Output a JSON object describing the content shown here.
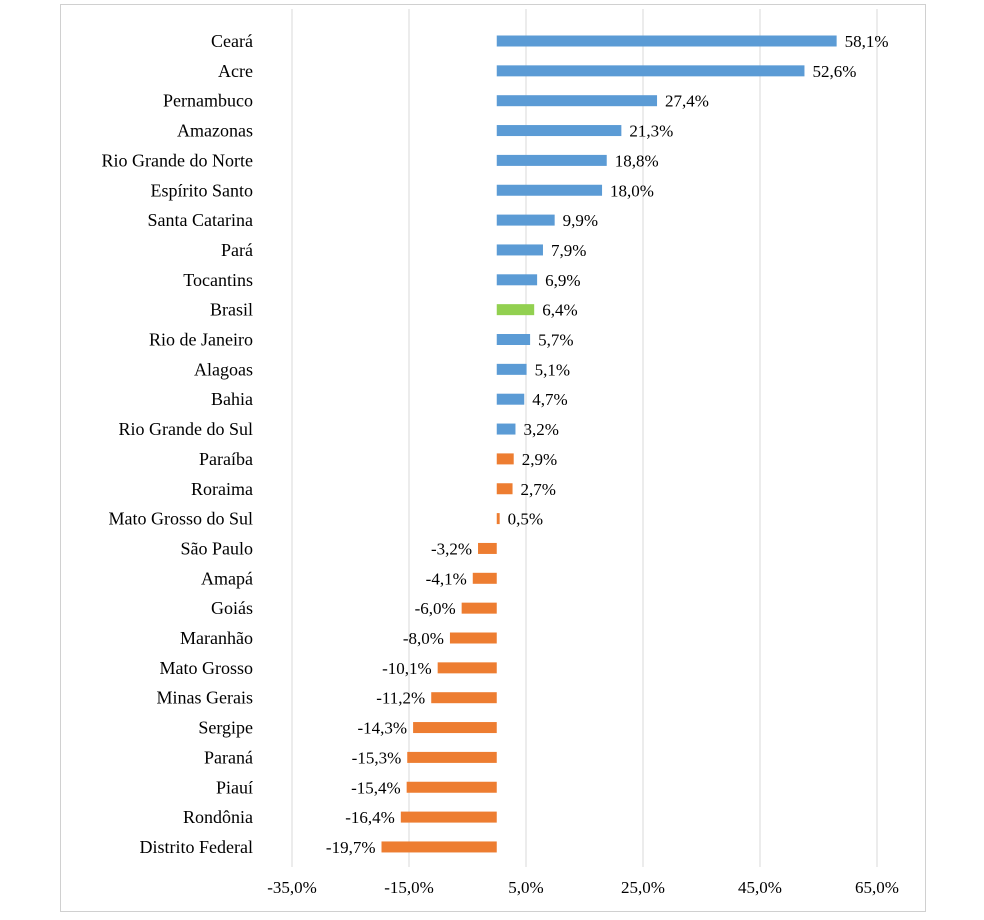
{
  "chart_data": {
    "type": "bar",
    "orientation": "horizontal",
    "categories": [
      "Ceará",
      "Acre",
      "Pernambuco",
      "Amazonas",
      "Rio Grande do Norte",
      "Espírito Santo",
      "Santa Catarina",
      "Pará",
      "Tocantins",
      "Brasil",
      "Rio de Janeiro",
      "Alagoas",
      "Bahia",
      "Rio Grande do Sul",
      "Paraíba",
      "Roraima",
      "Mato Grosso do Sul",
      "São Paulo",
      "Amapá",
      "Goiás",
      "Maranhão",
      "Mato Grosso",
      "Minas Gerais",
      "Sergipe",
      "Paraná",
      "Piauí",
      "Rondônia",
      "Distrito Federal"
    ],
    "values": [
      58.1,
      52.6,
      27.4,
      21.3,
      18.8,
      18.0,
      9.9,
      7.9,
      6.9,
      6.4,
      5.7,
      5.1,
      4.7,
      3.2,
      2.9,
      2.7,
      0.5,
      -3.2,
      -4.1,
      -6.0,
      -8.0,
      -10.1,
      -11.2,
      -14.3,
      -15.3,
      -15.4,
      -16.4,
      -19.7
    ],
    "value_labels": [
      "58,1%",
      "52,6%",
      "27,4%",
      "21,3%",
      "18,8%",
      "18,0%",
      "9,9%",
      "7,9%",
      "6,9%",
      "6,4%",
      "5,7%",
      "5,1%",
      "4,7%",
      "3,2%",
      "2,9%",
      "2,7%",
      "0,5%",
      "-3,2%",
      "-4,1%",
      "-6,0%",
      "-8,0%",
      "-10,1%",
      "-11,2%",
      "-14,3%",
      "-15,3%",
      "-15,4%",
      "-16,4%",
      "-19,7%"
    ],
    "bar_colors": [
      "#5b9bd5",
      "#5b9bd5",
      "#5b9bd5",
      "#5b9bd5",
      "#5b9bd5",
      "#5b9bd5",
      "#5b9bd5",
      "#5b9bd5",
      "#5b9bd5",
      "#92d050",
      "#5b9bd5",
      "#5b9bd5",
      "#5b9bd5",
      "#5b9bd5",
      "#ed7d31",
      "#ed7d31",
      "#ed7d31",
      "#ed7d31",
      "#ed7d31",
      "#ed7d31",
      "#ed7d31",
      "#ed7d31",
      "#ed7d31",
      "#ed7d31",
      "#ed7d31",
      "#ed7d31",
      "#ed7d31",
      "#ed7d31"
    ],
    "xlim": [
      -35,
      65
    ],
    "x_ticks": [
      -35,
      -15,
      5,
      25,
      45,
      65
    ],
    "x_tick_labels": [
      "-35,0%",
      "-15,0%",
      "5,0%",
      "25,0%",
      "45,0%",
      "65,0%"
    ],
    "grid": true,
    "legend": "none",
    "title": "",
    "xlabel": "",
    "ylabel": ""
  },
  "colors": {
    "positive": "#5b9bd5",
    "national": "#92d050",
    "negative": "#ed7d31",
    "gridline": "#d9d9d9"
  },
  "fragment_text": "(...)"
}
